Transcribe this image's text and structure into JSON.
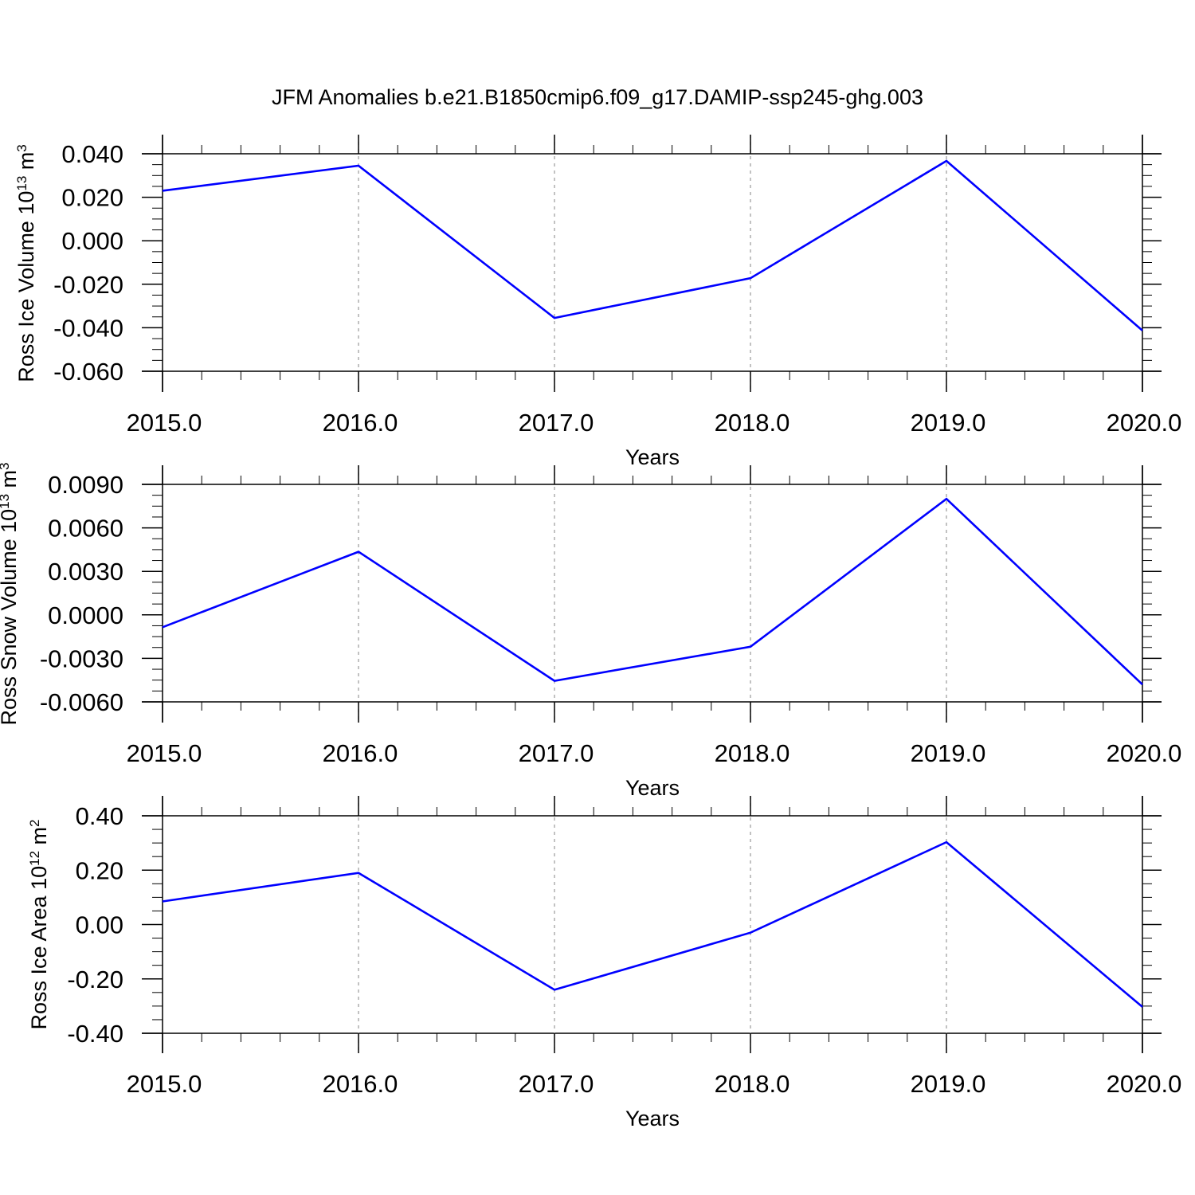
{
  "figure": {
    "title": "JFM Anomalies b.e21.B1850cmip6.f09_g17.DAMIP-ssp245-ghg.003",
    "line_color": "#0000ff",
    "grid_color": "#999999"
  },
  "chart_data": [
    {
      "type": "line",
      "title": "",
      "xlabel": "Years",
      "ylabel": {
        "text": "Ross Ice Volume 10",
        "sup": "13",
        "unit": " m",
        "unit_sup": "3"
      },
      "x": [
        2015,
        2016,
        2017,
        2018,
        2019,
        2020
      ],
      "xlim": [
        2015,
        2020
      ],
      "x_tick_labels": [
        "2015.0",
        "2016.0",
        "2017.0",
        "2018.0",
        "2019.0",
        "2020.0"
      ],
      "ylim": [
        -0.06,
        0.04
      ],
      "y_ticks": [
        0.04,
        0.02,
        0.0,
        -0.02,
        -0.04,
        -0.06
      ],
      "y_tick_labels": [
        "0.040",
        "0.020",
        "0.000",
        "-0.020",
        "-0.040",
        "-0.060"
      ],
      "y_minor_step": 0.005,
      "grid": "vertical dashed at x ticks",
      "series": [
        {
          "values": [
            0.023,
            0.0345,
            -0.0355,
            -0.0172,
            0.0367,
            -0.0413
          ]
        }
      ]
    },
    {
      "type": "line",
      "title": "",
      "xlabel": "Years",
      "ylabel": {
        "text": "Ross Snow Volume 10",
        "sup": "13",
        "unit": " m",
        "unit_sup": "3"
      },
      "x": [
        2015,
        2016,
        2017,
        2018,
        2019,
        2020
      ],
      "xlim": [
        2015,
        2020
      ],
      "x_tick_labels": [
        "2015.0",
        "2016.0",
        "2017.0",
        "2018.0",
        "2019.0",
        "2020.0"
      ],
      "ylim": [
        -0.006,
        0.009
      ],
      "y_ticks": [
        0.009,
        0.006,
        0.003,
        0.0,
        -0.003,
        -0.006
      ],
      "y_tick_labels": [
        "0.0090",
        "0.0060",
        "0.0030",
        "0.0000",
        "-0.0030",
        "-0.0060"
      ],
      "y_minor_step": 0.00075,
      "grid": "vertical dashed at x ticks",
      "series": [
        {
          "values": [
            -0.00085,
            0.00435,
            -0.00455,
            -0.0022,
            0.008,
            -0.0048
          ]
        }
      ]
    },
    {
      "type": "line",
      "title": "",
      "xlabel": "Years",
      "ylabel": {
        "text": "Ross Ice Area 10",
        "sup": "12",
        "unit": " m",
        "unit_sup": "2"
      },
      "x": [
        2015,
        2016,
        2017,
        2018,
        2019,
        2020
      ],
      "xlim": [
        2015,
        2020
      ],
      "x_tick_labels": [
        "2015.0",
        "2016.0",
        "2017.0",
        "2018.0",
        "2019.0",
        "2020.0"
      ],
      "ylim": [
        -0.4,
        0.4
      ],
      "y_ticks": [
        0.4,
        0.2,
        0.0,
        -0.2,
        -0.4
      ],
      "y_tick_labels": [
        "0.40",
        "0.20",
        "0.00",
        "-0.20",
        "-0.40"
      ],
      "y_minor_step": 0.05,
      "grid": "vertical dashed at x ticks",
      "series": [
        {
          "values": [
            0.085,
            0.19,
            -0.24,
            -0.03,
            0.303,
            -0.303
          ]
        }
      ]
    }
  ]
}
